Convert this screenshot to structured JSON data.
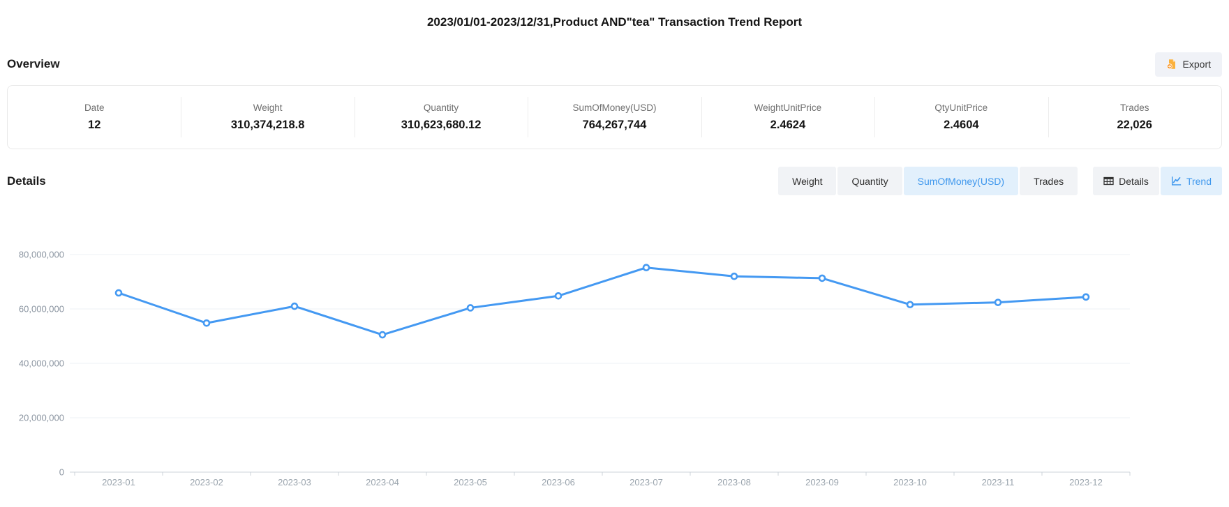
{
  "report": {
    "title": "2023/01/01-2023/12/31,Product AND\"tea\" Transaction Trend Report"
  },
  "overview": {
    "heading": "Overview",
    "export_label": "Export",
    "export_icon": "export-document-icon",
    "stats": [
      {
        "label": "Date",
        "value": "12"
      },
      {
        "label": "Weight",
        "value": "310,374,218.8"
      },
      {
        "label": "Quantity",
        "value": "310,623,680.12"
      },
      {
        "label": "SumOfMoney(USD)",
        "value": "764,267,744"
      },
      {
        "label": "WeightUnitPrice",
        "value": "2.4624"
      },
      {
        "label": "QtyUnitPrice",
        "value": "2.4604"
      },
      {
        "label": "Trades",
        "value": "22,026"
      }
    ]
  },
  "details": {
    "heading": "Details",
    "metric_tabs": [
      {
        "label": "Weight",
        "active": false
      },
      {
        "label": "Quantity",
        "active": false
      },
      {
        "label": "SumOfMoney(USD)",
        "active": true
      },
      {
        "label": "Trades",
        "active": false
      }
    ],
    "view_tabs": [
      {
        "label": "Details",
        "icon": "table-icon",
        "active": false
      },
      {
        "label": "Trend",
        "icon": "line-chart-icon",
        "active": true
      }
    ]
  },
  "colors": {
    "accent_blue": "#3e97ed",
    "line_blue": "#4499f2",
    "active_tab_bg": "#e2f0fc",
    "tab_bg": "#f1f3f6",
    "export_icon_orange": "#f9a826",
    "grid_line": "#edf1f6",
    "axis_line": "#ccd3da"
  },
  "chart_data": {
    "type": "line",
    "title": "",
    "xlabel": "",
    "ylabel": "",
    "x": [
      "2023-01",
      "2023-02",
      "2023-03",
      "2023-04",
      "2023-05",
      "2023-06",
      "2023-07",
      "2023-08",
      "2023-09",
      "2023-10",
      "2023-11",
      "2023-12"
    ],
    "series": [
      {
        "name": "SumOfMoney(USD)",
        "values": [
          65900000,
          54800000,
          61000000,
          50500000,
          60400000,
          64800000,
          75200000,
          72000000,
          71300000,
          61600000,
          62400000,
          64400000
        ]
      }
    ],
    "ylim": [
      0,
      80000000
    ],
    "ytick_interval": 20000000,
    "ytick_labels": [
      "0",
      "20,000,000",
      "40,000,000",
      "60,000,000",
      "80,000,000"
    ],
    "grid": true,
    "legend_position": "none",
    "line_color": "#4499f2",
    "marker": "hollow-circle"
  }
}
